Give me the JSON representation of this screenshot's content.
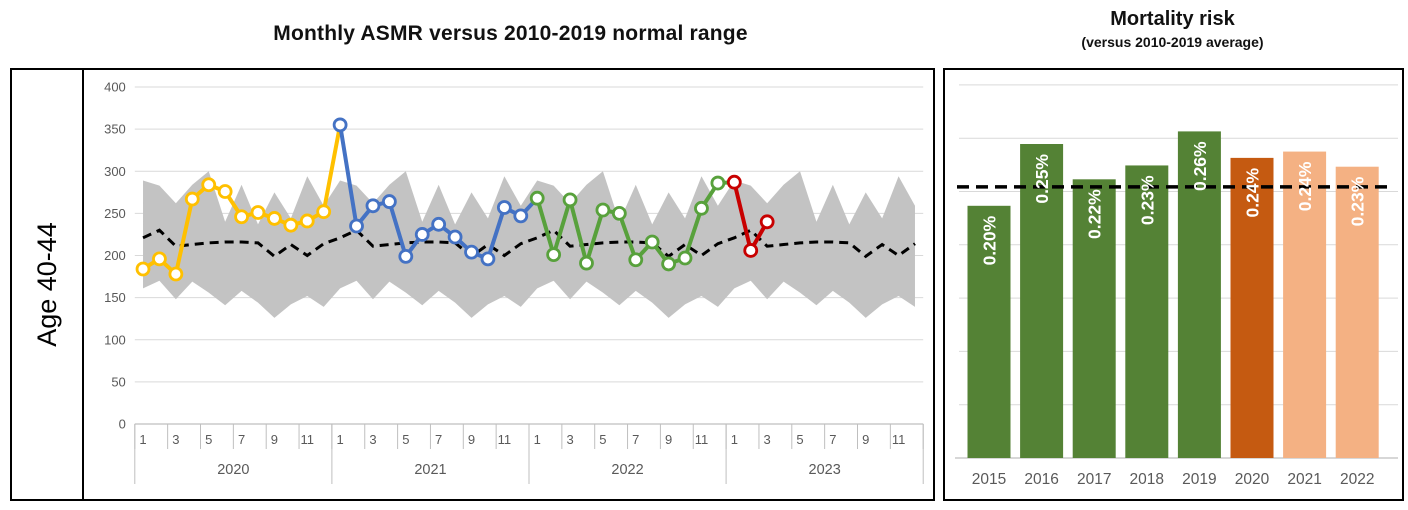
{
  "page": {
    "left_title": "Monthly ASMR versus 2010-2019 normal range",
    "right_title": "Mortality risk",
    "right_subtitle": "(versus 2010-2019 average)",
    "row_label": "Age 40-44"
  },
  "colors": {
    "band": "#C3C3C3",
    "baseline": "#000000",
    "gridline": "#D9D9D9",
    "axis_line": "#BFBFBF",
    "axis_text": "#595959",
    "series_2020": "#FFC000",
    "series_2021": "#4472C4",
    "series_2022": "#58A13C",
    "series_2023": "#C80000",
    "bar_green": "#548235",
    "bar_orange": "#C55A11",
    "bar_peach": "#F4B183",
    "bar_label_text": "#FFFFFF"
  },
  "chart_data": [
    {
      "type": "line",
      "title": "Monthly ASMR versus 2010-2019 normal range",
      "row_label": "Age 40-44",
      "ylim": [
        0,
        400
      ],
      "y_ticks": [
        400,
        350,
        300,
        250,
        200,
        150,
        100,
        50,
        0
      ],
      "x_month_tick_labels": [
        "1",
        "3",
        "5",
        "7",
        "9",
        "11"
      ],
      "x_year_labels": [
        "2020",
        "2021",
        "2022",
        "2023"
      ],
      "grid": true,
      "normal_range_upper_monthly": [
        289,
        283,
        262,
        284,
        300,
        240,
        284,
        237,
        275,
        244,
        294,
        259
      ],
      "normal_range_lower_monthly": [
        161,
        170,
        148,
        169,
        156,
        141,
        158,
        144,
        126,
        142,
        152,
        139
      ],
      "baseline_avg_2010_2019_monthly": [
        221,
        230,
        211,
        213,
        215,
        216,
        216,
        215,
        199,
        213,
        200,
        214
      ],
      "series": [
        {
          "name": "2020",
          "color_key": "series_2020",
          "values": [
            184,
            196,
            178,
            267,
            284,
            276,
            246,
            251,
            244,
            236,
            241,
            252
          ]
        },
        {
          "name": "2021",
          "color_key": "series_2021",
          "values": [
            355,
            235,
            259,
            264,
            199,
            225,
            237,
            222,
            204,
            196,
            257,
            247
          ]
        },
        {
          "name": "2022",
          "color_key": "series_2022",
          "values": [
            268,
            201,
            266,
            191,
            254,
            250,
            195,
            216,
            190,
            197,
            256,
            286
          ]
        },
        {
          "name": "2023",
          "color_key": "series_2023",
          "values": [
            287,
            206,
            240
          ]
        }
      ]
    },
    {
      "type": "bar",
      "title": "Mortality risk",
      "subtitle": "(versus 2010-2019 average)",
      "categories": [
        "2015",
        "2016",
        "2017",
        "2018",
        "2019",
        "2020",
        "2021",
        "2022"
      ],
      "values": [
        0.2,
        0.249,
        0.221,
        0.232,
        0.259,
        0.238,
        0.243,
        0.231
      ],
      "value_labels": [
        "0.20%",
        "0.25%",
        "0.22%",
        "0.23%",
        "0.26%",
        "0.24%",
        "0.24%",
        "0.23%"
      ],
      "bar_color_keys": [
        "bar_green",
        "bar_green",
        "bar_green",
        "bar_green",
        "bar_green",
        "bar_orange",
        "bar_peach",
        "bar_peach"
      ],
      "average_line_value": 0.215,
      "axis_max": 0.295,
      "grid": true,
      "legend": "none"
    }
  ]
}
